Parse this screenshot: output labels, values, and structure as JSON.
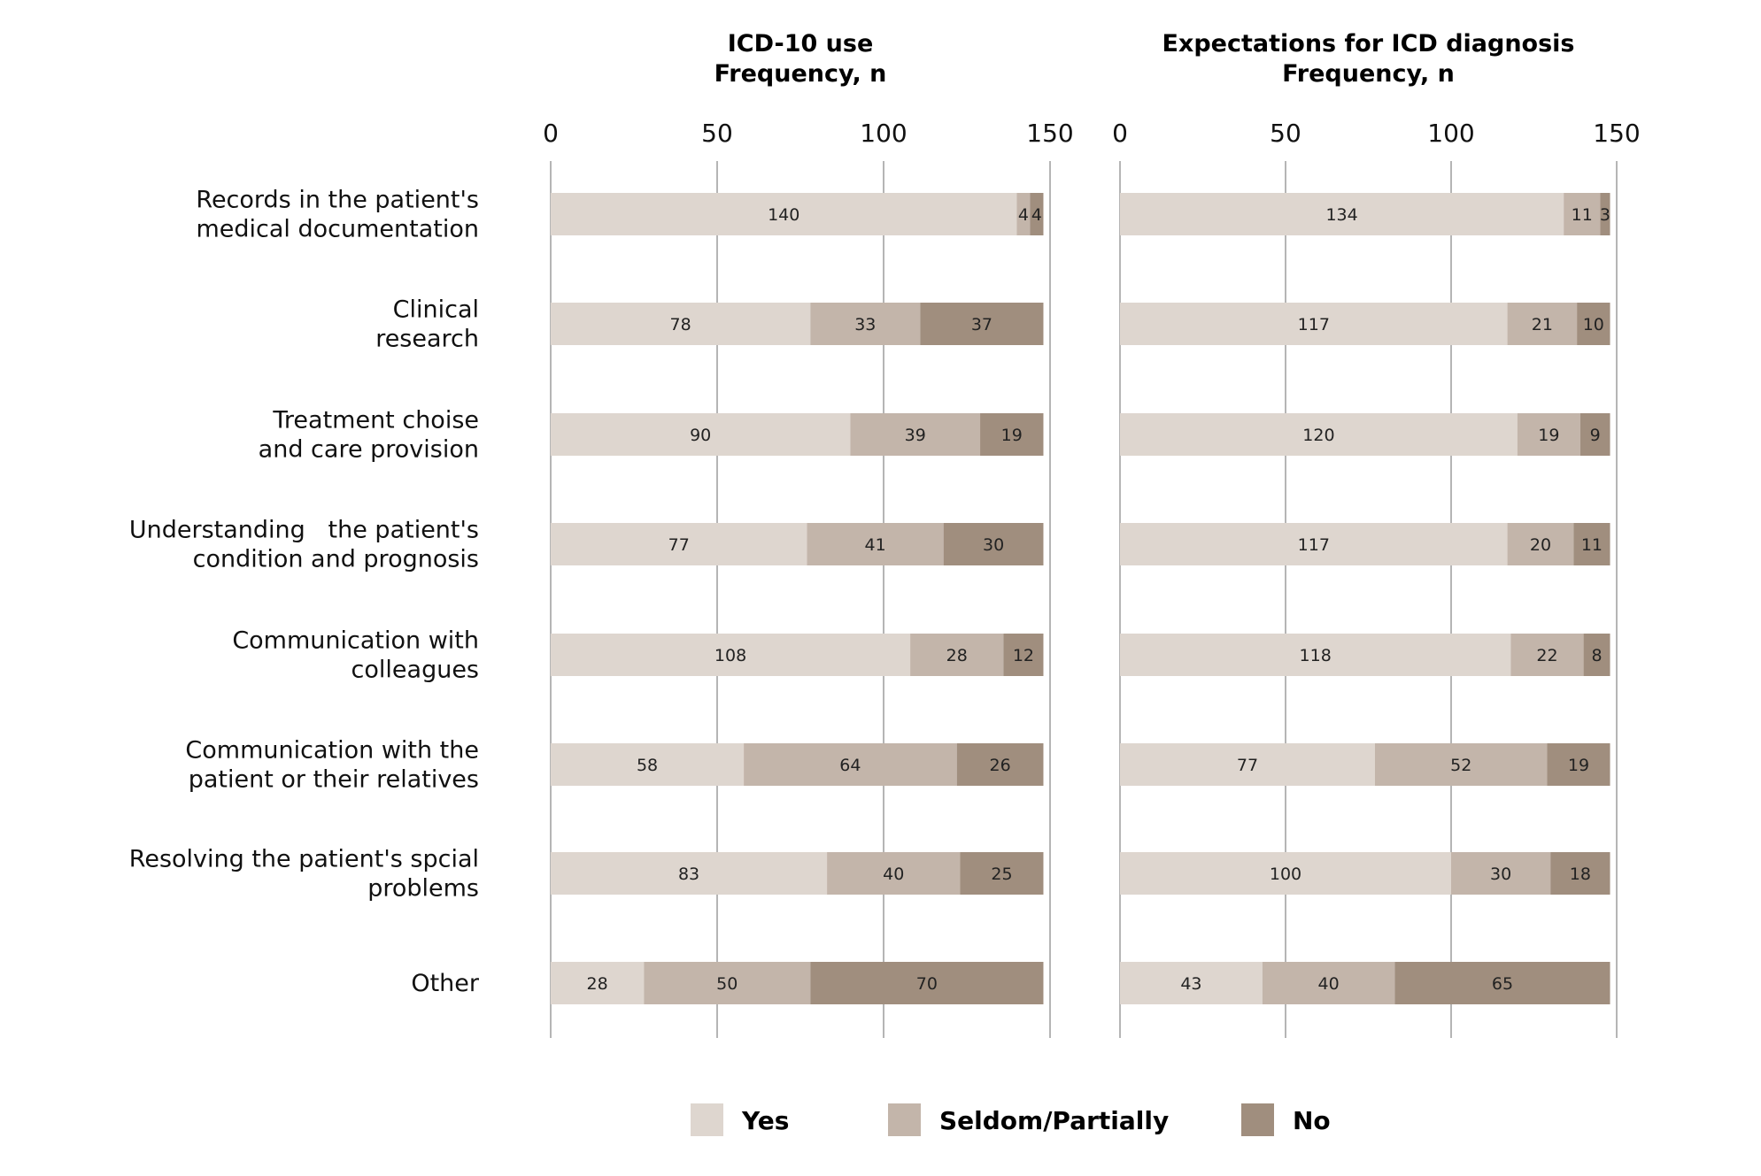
{
  "chart_data": [
    {
      "type": "bar",
      "orientation": "horizontal",
      "stacked": true,
      "title": "ICD-10 use",
      "subtitle": "Frequency, n",
      "xlim": [
        0,
        150
      ],
      "xticks": [
        "0",
        "50",
        "100",
        "150"
      ],
      "grid": true,
      "legend": "bottom",
      "categories": [
        "Records in the patient's\nmedical documentation",
        "Clinical\nresearch",
        "Treatment choise\nand care provision",
        "Understanding   the patient's\ncondition and prognosis",
        "Communication with\ncolleagues",
        "Communication with the\npatient or their relatives",
        "Resolving the patient's spcial\nproblems",
        "Other"
      ],
      "series": [
        {
          "name": "Yes",
          "color": "#ded6cf",
          "values": [
            140,
            78,
            90,
            77,
            108,
            58,
            83,
            28
          ]
        },
        {
          "name": "Seldom/Partially",
          "color": "#c3b5aa",
          "values": [
            4,
            33,
            39,
            41,
            28,
            64,
            40,
            50
          ]
        },
        {
          "name": "No",
          "color": "#a08e7e",
          "values": [
            4,
            37,
            19,
            30,
            12,
            26,
            25,
            70
          ]
        }
      ]
    },
    {
      "type": "bar",
      "orientation": "horizontal",
      "stacked": true,
      "title": "Expectations for ICD diagnosis",
      "subtitle": "Frequency, n",
      "xlim": [
        0,
        150
      ],
      "xticks": [
        "0",
        "50",
        "100",
        "150"
      ],
      "grid": true,
      "legend": "bottom",
      "series": [
        {
          "name": "Yes",
          "color": "#ded6cf",
          "values": [
            134,
            117,
            120,
            117,
            118,
            77,
            100,
            43
          ]
        },
        {
          "name": "Seldom/Partially",
          "color": "#c3b5aa",
          "values": [
            11,
            21,
            19,
            20,
            22,
            52,
            30,
            40
          ]
        },
        {
          "name": "No",
          "color": "#a08e7e",
          "values": [
            3,
            10,
            9,
            11,
            8,
            19,
            18,
            65
          ]
        }
      ]
    }
  ],
  "legend": [
    {
      "label": "Yes",
      "color": "#ded6cf"
    },
    {
      "label": "Seldom/Partially",
      "color": "#c3b5aa"
    },
    {
      "label": "No",
      "color": "#a08e7e"
    }
  ]
}
